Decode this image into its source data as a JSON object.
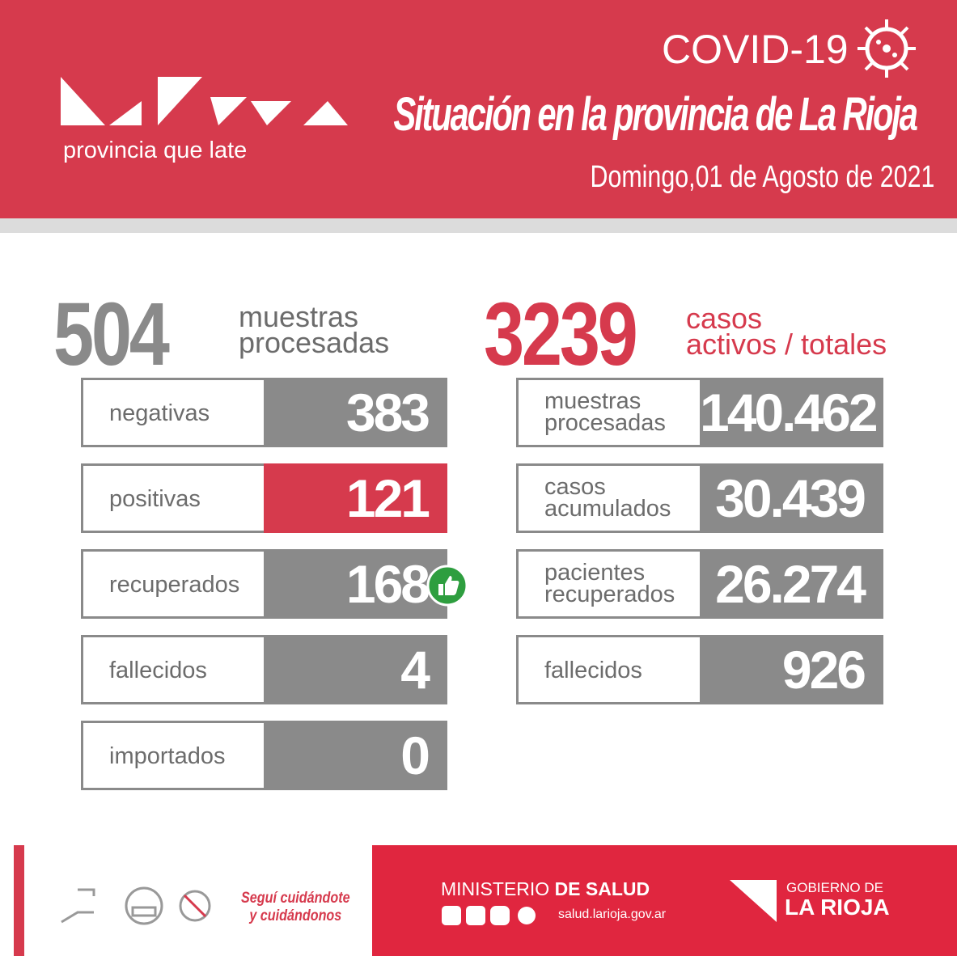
{
  "header": {
    "logo_tagline": "provincia que late",
    "badge": "COVID-19",
    "title": "Situación en la provincia de La Rioja",
    "date": "Domingo,01 de Agosto de 2021"
  },
  "summary": {
    "daily": {
      "number": "504",
      "label": [
        "muestras",
        "procesadas"
      ]
    },
    "totals": {
      "number": "3239",
      "label": [
        "casos",
        "activos / totales"
      ]
    }
  },
  "daily_rows": [
    {
      "label": [
        "negativas"
      ],
      "value": "383"
    },
    {
      "label": [
        "positivas"
      ],
      "value": "121"
    },
    {
      "label": [
        "recuperados"
      ],
      "value": "168"
    },
    {
      "label": [
        "fallecidos"
      ],
      "value": "4"
    },
    {
      "label": [
        "importados"
      ],
      "value": "0"
    }
  ],
  "total_rows": [
    {
      "label": [
        "muestras",
        "procesadas"
      ],
      "value": "140.462"
    },
    {
      "label": [
        "casos",
        "acumulados"
      ],
      "value": "30.439"
    },
    {
      "label": [
        "pacientes",
        "recuperados"
      ],
      "value": "26.274"
    },
    {
      "label": [
        "fallecidos"
      ],
      "value": "926"
    }
  ],
  "footer": {
    "slogan": [
      "Seguí cuidándote",
      "y cuidándonos"
    ],
    "ministry": "MINISTERIO",
    "ministry_bold": "DE SALUD",
    "website": "salud.larioja.gov.ar",
    "government": "GOBIERNO DE",
    "government_bold": "LA RIOJA"
  }
}
